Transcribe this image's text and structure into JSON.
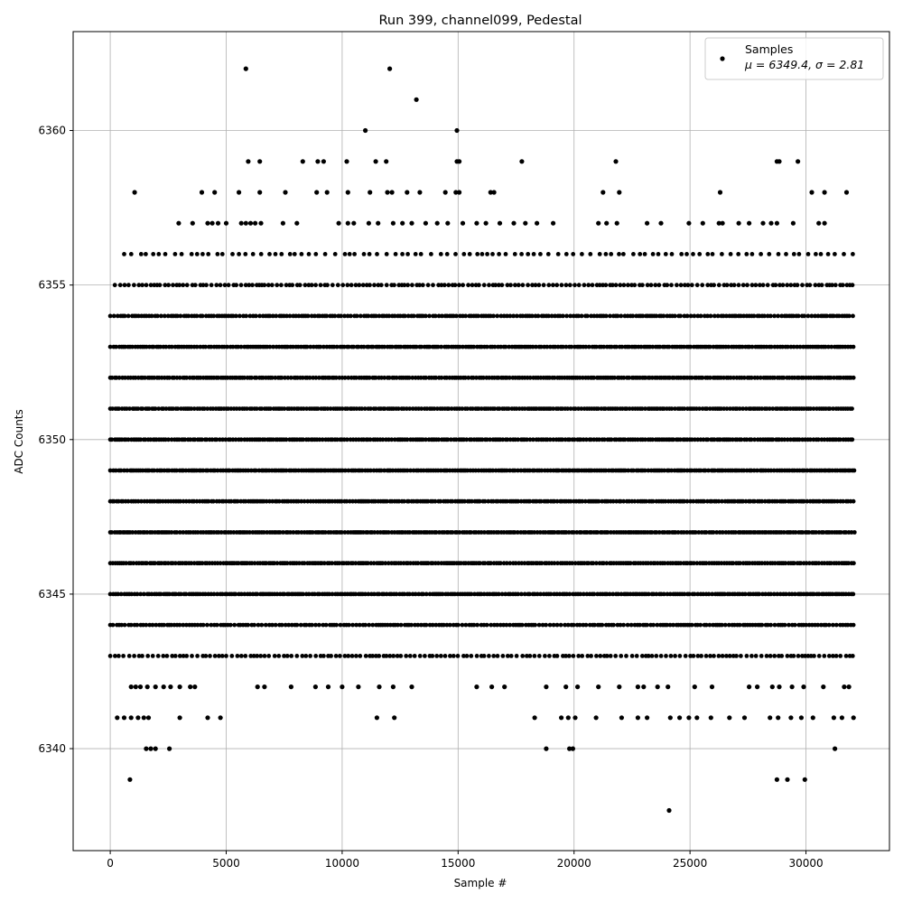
{
  "chart_data": {
    "type": "scatter",
    "title": "Run 399, channel099, Pedestal",
    "xlabel": "Sample #",
    "ylabel": "ADC Counts",
    "xlim": [
      -1600,
      33600
    ],
    "ylim": [
      6336.7,
      6363.2
    ],
    "xticks": [
      0,
      5000,
      10000,
      15000,
      20000,
      25000,
      30000
    ],
    "yticks": [
      6340,
      6345,
      6350,
      6355,
      6360
    ],
    "grid": true,
    "legend": {
      "placement": "top-right",
      "entries": [
        {
          "label": "Samples",
          "stats": "μ = 6349.4, σ = 2.81"
        }
      ]
    },
    "marker_color": "#000000",
    "series": [
      {
        "name": "Samples",
        "n_samples": 32100,
        "dense_levels": [
          {
            "y": 6343,
            "xmin": 0,
            "xmax": 32100,
            "density": 0.55
          },
          {
            "y": 6344,
            "xmin": 0,
            "xmax": 32100,
            "density": 0.8
          },
          {
            "y": 6345,
            "xmin": 0,
            "xmax": 32100,
            "density": 0.95
          },
          {
            "y": 6346,
            "xmin": 0,
            "xmax": 32100,
            "density": 1.0
          },
          {
            "y": 6347,
            "xmin": 0,
            "xmax": 32100,
            "density": 1.0
          },
          {
            "y": 6348,
            "xmin": 0,
            "xmax": 32100,
            "density": 1.0
          },
          {
            "y": 6349,
            "xmin": 0,
            "xmax": 32100,
            "density": 1.0
          },
          {
            "y": 6350,
            "xmin": 0,
            "xmax": 32100,
            "density": 1.0
          },
          {
            "y": 6351,
            "xmin": 0,
            "xmax": 32100,
            "density": 1.0
          },
          {
            "y": 6352,
            "xmin": 0,
            "xmax": 32100,
            "density": 1.0
          },
          {
            "y": 6353,
            "xmin": 0,
            "xmax": 32100,
            "density": 0.95
          },
          {
            "y": 6354,
            "xmin": 0,
            "xmax": 32100,
            "density": 0.85
          },
          {
            "y": 6355,
            "xmin": 200,
            "xmax": 32100,
            "density": 0.6
          },
          {
            "y": 6356,
            "xmin": 600,
            "xmax": 32100,
            "density": 0.32
          }
        ],
        "sparse_points": [
          [
            5850,
            6362
          ],
          [
            12050,
            6362
          ],
          [
            13200,
            6361
          ],
          [
            11000,
            6360
          ],
          [
            14950,
            6360
          ],
          [
            5950,
            6359
          ],
          [
            6450,
            6359
          ],
          [
            8300,
            6359
          ],
          [
            8950,
            6359
          ],
          [
            9200,
            6359
          ],
          [
            10200,
            6359
          ],
          [
            11450,
            6359
          ],
          [
            11900,
            6359
          ],
          [
            14950,
            6359
          ],
          [
            15050,
            6359
          ],
          [
            17750,
            6359
          ],
          [
            21800,
            6359
          ],
          [
            28750,
            6359
          ],
          [
            28850,
            6359
          ],
          [
            29650,
            6359
          ],
          [
            1050,
            6358
          ],
          [
            3950,
            6358
          ],
          [
            4500,
            6358
          ],
          [
            5550,
            6358
          ],
          [
            6450,
            6358
          ],
          [
            7550,
            6358
          ],
          [
            8900,
            6358
          ],
          [
            9350,
            6358
          ],
          [
            10250,
            6358
          ],
          [
            11200,
            6358
          ],
          [
            11950,
            6358
          ],
          [
            12150,
            6358
          ],
          [
            12800,
            6358
          ],
          [
            13350,
            6358
          ],
          [
            14450,
            6358
          ],
          [
            14900,
            6358
          ],
          [
            15050,
            6358
          ],
          [
            16400,
            6358
          ],
          [
            16550,
            6358
          ],
          [
            21250,
            6358
          ],
          [
            21950,
            6358
          ],
          [
            26300,
            6358
          ],
          [
            30250,
            6358
          ],
          [
            30800,
            6358
          ],
          [
            31750,
            6358
          ],
          [
            2950,
            6357
          ],
          [
            3550,
            6357
          ],
          [
            4200,
            6357
          ],
          [
            4400,
            6357
          ],
          [
            4650,
            6357
          ],
          [
            5000,
            6357
          ],
          [
            5650,
            6357
          ],
          [
            5850,
            6357
          ],
          [
            6050,
            6357
          ],
          [
            6250,
            6357
          ],
          [
            6500,
            6357
          ],
          [
            7450,
            6357
          ],
          [
            8050,
            6357
          ],
          [
            9850,
            6357
          ],
          [
            10250,
            6357
          ],
          [
            10500,
            6357
          ],
          [
            11150,
            6357
          ],
          [
            11550,
            6357
          ],
          [
            12200,
            6357
          ],
          [
            12600,
            6357
          ],
          [
            13000,
            6357
          ],
          [
            13600,
            6357
          ],
          [
            14100,
            6357
          ],
          [
            14550,
            6357
          ],
          [
            15200,
            6357
          ],
          [
            15800,
            6357
          ],
          [
            16200,
            6357
          ],
          [
            16800,
            6357
          ],
          [
            17400,
            6357
          ],
          [
            17900,
            6357
          ],
          [
            18400,
            6357
          ],
          [
            19100,
            6357
          ],
          [
            21050,
            6357
          ],
          [
            21400,
            6357
          ],
          [
            21850,
            6357
          ],
          [
            23150,
            6357
          ],
          [
            23750,
            6357
          ],
          [
            24950,
            6357
          ],
          [
            25550,
            6357
          ],
          [
            26250,
            6357
          ],
          [
            26400,
            6357
          ],
          [
            27100,
            6357
          ],
          [
            27550,
            6357
          ],
          [
            28150,
            6357
          ],
          [
            28500,
            6357
          ],
          [
            28750,
            6357
          ],
          [
            29450,
            6357
          ],
          [
            30550,
            6357
          ],
          [
            30800,
            6357
          ],
          [
            900,
            6342
          ],
          [
            1100,
            6342
          ],
          [
            1300,
            6342
          ],
          [
            1600,
            6342
          ],
          [
            1950,
            6342
          ],
          [
            2300,
            6342
          ],
          [
            2600,
            6342
          ],
          [
            3000,
            6342
          ],
          [
            3450,
            6342
          ],
          [
            3650,
            6342
          ],
          [
            6350,
            6342
          ],
          [
            6650,
            6342
          ],
          [
            7800,
            6342
          ],
          [
            8850,
            6342
          ],
          [
            9400,
            6342
          ],
          [
            10000,
            6342
          ],
          [
            10700,
            6342
          ],
          [
            11600,
            6342
          ],
          [
            12200,
            6342
          ],
          [
            13000,
            6342
          ],
          [
            15800,
            6342
          ],
          [
            16450,
            6342
          ],
          [
            17000,
            6342
          ],
          [
            18800,
            6342
          ],
          [
            19650,
            6342
          ],
          [
            20150,
            6342
          ],
          [
            21050,
            6342
          ],
          [
            21950,
            6342
          ],
          [
            22750,
            6342
          ],
          [
            23000,
            6342
          ],
          [
            23600,
            6342
          ],
          [
            24050,
            6342
          ],
          [
            25200,
            6342
          ],
          [
            25950,
            6342
          ],
          [
            27550,
            6342
          ],
          [
            27900,
            6342
          ],
          [
            28550,
            6342
          ],
          [
            28850,
            6342
          ],
          [
            29400,
            6342
          ],
          [
            29900,
            6342
          ],
          [
            30750,
            6342
          ],
          [
            31650,
            6342
          ],
          [
            31850,
            6342
          ],
          [
            300,
            6341
          ],
          [
            600,
            6341
          ],
          [
            900,
            6341
          ],
          [
            1200,
            6341
          ],
          [
            1450,
            6341
          ],
          [
            1650,
            6341
          ],
          [
            3000,
            6341
          ],
          [
            4200,
            6341
          ],
          [
            4750,
            6341
          ],
          [
            11500,
            6341
          ],
          [
            12250,
            6341
          ],
          [
            18300,
            6341
          ],
          [
            19450,
            6341
          ],
          [
            19750,
            6341
          ],
          [
            20050,
            6341
          ],
          [
            20950,
            6341
          ],
          [
            22050,
            6341
          ],
          [
            22750,
            6341
          ],
          [
            23150,
            6341
          ],
          [
            24150,
            6341
          ],
          [
            24550,
            6341
          ],
          [
            24950,
            6341
          ],
          [
            25300,
            6341
          ],
          [
            25900,
            6341
          ],
          [
            26700,
            6341
          ],
          [
            27350,
            6341
          ],
          [
            28450,
            6341
          ],
          [
            28800,
            6341
          ],
          [
            29350,
            6341
          ],
          [
            29800,
            6341
          ],
          [
            30300,
            6341
          ],
          [
            31200,
            6341
          ],
          [
            31550,
            6341
          ],
          [
            32050,
            6341
          ],
          [
            1550,
            6340
          ],
          [
            1750,
            6340
          ],
          [
            1950,
            6340
          ],
          [
            2550,
            6340
          ],
          [
            18800,
            6340
          ],
          [
            19800,
            6340
          ],
          [
            19950,
            6340
          ],
          [
            31250,
            6340
          ],
          [
            850,
            6339
          ],
          [
            28750,
            6339
          ],
          [
            29200,
            6339
          ],
          [
            29950,
            6339
          ],
          [
            24100,
            6338
          ]
        ]
      }
    ]
  }
}
